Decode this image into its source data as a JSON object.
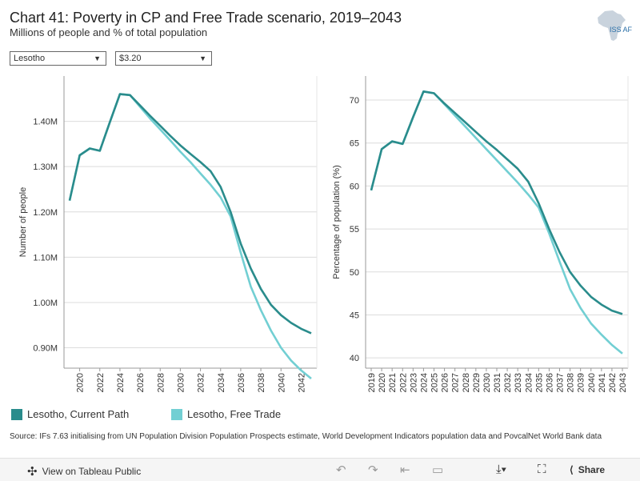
{
  "header": {
    "title": "Chart 41: Poverty in CP and Free Trade scenario, 2019–2043",
    "subtitle": "Millions of people and % of total population",
    "logo_text": "ISS AFI"
  },
  "filters": {
    "country": "Lesotho",
    "threshold": "$3.20"
  },
  "legend": {
    "current_path": "Lesotho, Current Path",
    "free_trade": "Lesotho, Free Trade"
  },
  "colors": {
    "current_path": "#2a8c8c",
    "free_trade": "#72cfd3"
  },
  "source": "Source: IFs 7.63 initialising from UN Population Division Population Prospects estimate, World Development Indicators population data and PovcalNet World Bank data",
  "footer": {
    "view_label": "View on Tableau Public",
    "share_label": "Share"
  },
  "chart_data": [
    {
      "type": "line",
      "title": "",
      "ylabel": "Number of people",
      "xlabel": "",
      "x": [
        2019,
        2020,
        2021,
        2022,
        2023,
        2024,
        2025,
        2026,
        2027,
        2028,
        2029,
        2030,
        2031,
        2032,
        2033,
        2034,
        2035,
        2036,
        2037,
        2038,
        2039,
        2040,
        2041,
        2042,
        2043
      ],
      "ylim": [
        0.855,
        1.5
      ],
      "yticks": [
        0.9,
        1.0,
        1.1,
        1.2,
        1.3,
        1.4
      ],
      "ytick_labels": [
        "0.90M",
        "1.00M",
        "1.10M",
        "1.20M",
        "1.30M",
        "1.40M"
      ],
      "xticks": [
        2020,
        2022,
        2024,
        2026,
        2028,
        2030,
        2032,
        2034,
        2036,
        2038,
        2040,
        2042
      ],
      "series": [
        {
          "name": "Lesotho, Current Path",
          "values": [
            1.225,
            1.325,
            1.34,
            1.335,
            1.398,
            1.46,
            1.458,
            1.435,
            1.412,
            1.39,
            1.368,
            1.347,
            1.328,
            1.31,
            1.29,
            1.255,
            1.2,
            1.13,
            1.075,
            1.03,
            0.995,
            0.972,
            0.955,
            0.942,
            0.932
          ]
        },
        {
          "name": "Lesotho, Free Trade",
          "values": [
            1.225,
            1.325,
            1.34,
            1.335,
            1.398,
            1.46,
            1.458,
            1.432,
            1.406,
            1.382,
            1.358,
            1.333,
            1.31,
            1.285,
            1.26,
            1.232,
            1.19,
            1.11,
            1.035,
            0.983,
            0.938,
            0.9,
            0.872,
            0.85,
            0.832
          ]
        }
      ]
    },
    {
      "type": "line",
      "title": "",
      "ylabel": "Percentage of population (%)",
      "xlabel": "",
      "x": [
        2019,
        2020,
        2021,
        2022,
        2023,
        2024,
        2025,
        2026,
        2027,
        2028,
        2029,
        2030,
        2031,
        2032,
        2033,
        2034,
        2035,
        2036,
        2037,
        2038,
        2039,
        2040,
        2041,
        2042,
        2043
      ],
      "ylim": [
        38.8,
        72.8
      ],
      "yticks": [
        40,
        45,
        50,
        55,
        60,
        65,
        70
      ],
      "ytick_labels": [
        "40",
        "45",
        "50",
        "55",
        "60",
        "65",
        "70"
      ],
      "xticks": [
        2019,
        2020,
        2021,
        2022,
        2023,
        2024,
        2025,
        2026,
        2027,
        2028,
        2029,
        2030,
        2031,
        2032,
        2033,
        2034,
        2035,
        2036,
        2037,
        2038,
        2039,
        2040,
        2041,
        2042,
        2043
      ],
      "series": [
        {
          "name": "Lesotho, Current Path",
          "values": [
            59.5,
            64.3,
            65.2,
            64.9,
            68.0,
            71.0,
            70.8,
            69.6,
            68.5,
            67.4,
            66.3,
            65.2,
            64.2,
            63.1,
            62.0,
            60.5,
            58.0,
            55.0,
            52.3,
            50.0,
            48.4,
            47.1,
            46.2,
            45.5,
            45.1
          ]
        },
        {
          "name": "Lesotho, Free Trade",
          "values": [
            59.5,
            64.3,
            65.2,
            64.9,
            68.0,
            71.0,
            70.8,
            69.5,
            68.2,
            66.9,
            65.6,
            64.3,
            63.0,
            61.7,
            60.4,
            59.0,
            57.5,
            54.5,
            51.2,
            48.0,
            45.8,
            44.0,
            42.7,
            41.5,
            40.5
          ]
        }
      ]
    }
  ]
}
